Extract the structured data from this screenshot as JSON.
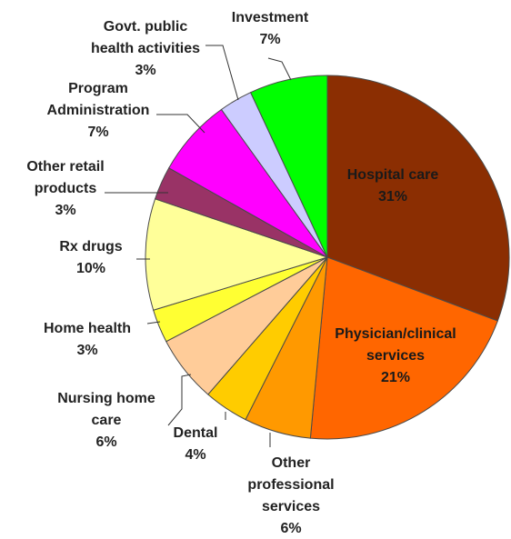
{
  "chart_data": {
    "type": "pie",
    "slices": [
      {
        "label": "Hospital care",
        "label_lines": [
          "Hospital care",
          "31%"
        ],
        "value": 31,
        "color": "#8B2E02"
      },
      {
        "label": "Physician/clinical services",
        "label_lines": [
          "Physician/clinical",
          "services",
          "21%"
        ],
        "value": 21,
        "color": "#FF6600"
      },
      {
        "label": "Other professional services",
        "label_lines": [
          "Other",
          "professional",
          "services",
          "6%"
        ],
        "value": 6,
        "color": "#FF9900"
      },
      {
        "label": "Dental",
        "label_lines": [
          "Dental",
          "4%"
        ],
        "value": 4,
        "color": "#FFCC00"
      },
      {
        "label": "Nursing home care",
        "label_lines": [
          "Nursing home",
          "care",
          "6%"
        ],
        "value": 6,
        "color": "#FFCC99"
      },
      {
        "label": "Home health",
        "label_lines": [
          "Home health",
          "3%"
        ],
        "value": 3,
        "color": "#FFFF33"
      },
      {
        "label": "Rx drugs",
        "label_lines": [
          "Rx drugs",
          "10%"
        ],
        "value": 10,
        "color": "#FFFF99"
      },
      {
        "label": "Other retail products",
        "label_lines": [
          "Other retail",
          "products",
          "3%"
        ],
        "value": 3,
        "color": "#993366"
      },
      {
        "label": "Program Administration",
        "label_lines": [
          "Program",
          "Administration",
          "7%"
        ],
        "value": 7,
        "color": "#FF00FF"
      },
      {
        "label": "Govt. public health activities",
        "label_lines": [
          "Govt. public",
          "health activities",
          "3%"
        ],
        "value": 3,
        "color": "#CCCCFF"
      },
      {
        "label": "Investment",
        "label_lines": [
          "Investment",
          "7%"
        ],
        "value": 7,
        "color": "#00FF00"
      }
    ],
    "title": "",
    "legend": "none"
  }
}
